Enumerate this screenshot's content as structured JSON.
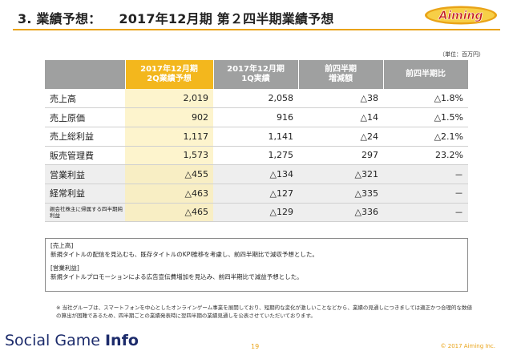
{
  "header": {
    "section": "3. 業績予想：",
    "subtitle": "2017年12月期 第２四半期業績予想",
    "logo_text": "Aiming",
    "accent_color": "#e9a317"
  },
  "table": {
    "unit": "（単位：百万円）",
    "columns": [
      {
        "line1": "2017年12月期",
        "line2": "2Q業績予想"
      },
      {
        "line1": "2017年12月期",
        "line2": "1Q実績"
      },
      {
        "line1": "前四半期",
        "line2": "増減額"
      },
      {
        "line1": "前四半期比",
        "line2": ""
      }
    ],
    "rows": [
      {
        "label": "売上高",
        "forecast": "2,019",
        "q1": "2,058",
        "change": "△38",
        "ratio": "△1.8%"
      },
      {
        "label": "売上原価",
        "forecast": "902",
        "q1": "916",
        "change": "△14",
        "ratio": "△1.5%"
      },
      {
        "label": "売上総利益",
        "forecast": "1,117",
        "q1": "1,141",
        "change": "△24",
        "ratio": "△2.1%"
      },
      {
        "label": "販売管理費",
        "forecast": "1,573",
        "q1": "1,275",
        "change": "297",
        "ratio": "23.2%"
      },
      {
        "label": "営業利益",
        "forecast": "△455",
        "q1": "△134",
        "change": "△321",
        "ratio": "－"
      },
      {
        "label": "経常利益",
        "forecast": "△463",
        "q1": "△127",
        "change": "△335",
        "ratio": "－"
      },
      {
        "label": "親会社株主に帰属する四半期純利益",
        "forecast": "△465",
        "q1": "△129",
        "change": "△336",
        "ratio": "－"
      }
    ]
  },
  "notes": {
    "sales_head": "[売上高]",
    "sales_body": "新規タイトルの配信を見込むも、既存タイトルのKPI推移を考慮し、前四半期比で減収予想とした。",
    "op_head": "[営業利益]",
    "op_body": "新規タイトルプロモーションによる広告宣伝費増加を見込み、前四半期比で減益予想とした。"
  },
  "footnote": "※ 当社グループは、スマートフォンを中心としたオンラインゲーム事業を展開しており、短期的な変化が激しいことなどから、業績の見通しにつきましては適正かつ合理的な数値の算出が困難であるため、四半期ごとの業績発表時に翌四半期の業績見通しを公表させていただいております。",
  "footer": {
    "watermark_a": "Social Game ",
    "watermark_b": "Info",
    "page": "19",
    "copyright": "© 2017 Aiming Inc."
  }
}
